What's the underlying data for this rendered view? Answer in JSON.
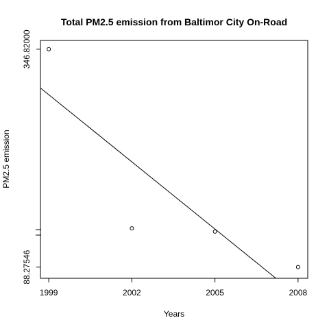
{
  "chart_data": {
    "type": "scatter",
    "title": "Total PM2.5 emission from Baltimor City On-Road",
    "xlabel": "Years",
    "ylabel": "PM2.5 emission",
    "x_ticks": [
      "1999",
      "2002",
      "2005",
      "2008"
    ],
    "y_ticks": [
      "88.27546",
      "346.82000"
    ],
    "y_tick_values": [
      88.27546,
      346.82
    ],
    "series": [
      {
        "x": [
          1999,
          2002,
          2005,
          2008
        ],
        "y": [
          346.82,
          134.31,
          130.43,
          88.27546
        ]
      }
    ],
    "trend_line": {
      "x": [
        1998.7,
        2007.2
      ],
      "y": [
        300.8,
        75.0
      ]
    },
    "xlim": [
      1998.7,
      2008.35
    ],
    "ylim": [
      75.0,
      357.2
    ],
    "grid": false,
    "legend": "none"
  }
}
